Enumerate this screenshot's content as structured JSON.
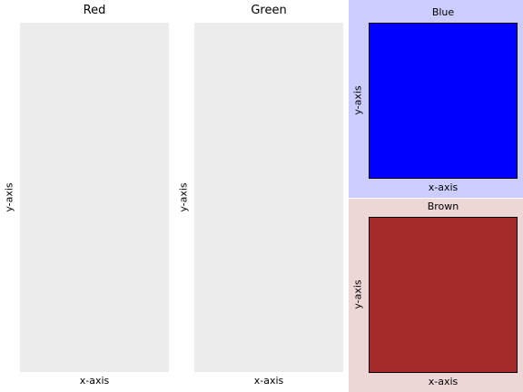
{
  "chart_data": [
    {
      "type": "empty",
      "title": "Red",
      "xlabel": "x-axis",
      "ylabel": "y-axis",
      "facecolor": "#ebebeb"
    },
    {
      "type": "empty",
      "title": "Green",
      "xlabel": "x-axis",
      "ylabel": "y-axis",
      "facecolor": "#ebebeb"
    },
    {
      "type": "filled",
      "title": "Blue",
      "xlabel": "x-axis",
      "ylabel": "y-axis",
      "facecolor": "#0000ff",
      "subfigure_color": "#ccccff"
    },
    {
      "type": "filled",
      "title": "Brown",
      "xlabel": "x-axis",
      "ylabel": "y-axis",
      "facecolor": "#a52a2a",
      "subfigure_color": "#ecd6d6"
    }
  ]
}
